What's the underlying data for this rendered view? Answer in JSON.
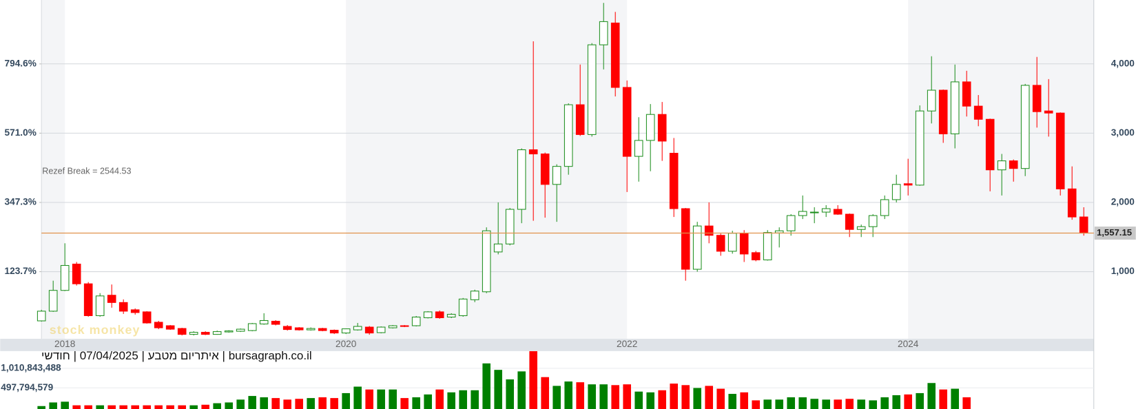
{
  "chart_data": {
    "type": "candlestick",
    "title": "bursagraph.co.il | איתריום מטבע | 07/04/2025 | חודשי",
    "annotation": "Rezef Break = 2544.53",
    "logo": "stock monkey",
    "categories": [
      null,
      null,
      "2018",
      null,
      null,
      null,
      null,
      null,
      null,
      null,
      null,
      null,
      null,
      null,
      null,
      null,
      null,
      null,
      null,
      null,
      null,
      null,
      null,
      null,
      null,
      null,
      "2020",
      null,
      null,
      null,
      null,
      null,
      null,
      null,
      null,
      null,
      null,
      null,
      null,
      null,
      null,
      null,
      null,
      null,
      null,
      null,
      null,
      null,
      null,
      null,
      "2022",
      null,
      null,
      null,
      null,
      null,
      null,
      null,
      null,
      null,
      null,
      null,
      null,
      null,
      null,
      null,
      null,
      null,
      null,
      null,
      null,
      null,
      null,
      null,
      "2024",
      null,
      null,
      null,
      null,
      null,
      null,
      null,
      null,
      null,
      null,
      null,
      null,
      null,
      null,
      null
    ],
    "open": [
      290,
      430,
      730,
      1110,
      825,
      365,
      660,
      555,
      450,
      420,
      270,
      220,
      180,
      95,
      125,
      95,
      130,
      140,
      150,
      245,
      285,
      210,
      190,
      160,
      180,
      155,
      115,
      160,
      200,
      120,
      190,
      220,
      220,
      335,
      420,
      345,
      365,
      595,
      710,
      1285,
      1400,
      1900,
      2760,
      2700,
      2260,
      2520,
      3410,
      2980,
      4275,
      4590,
      3660,
      2665,
      2895,
      3270,
      2710,
      1910,
      1035,
      1660,
      1525,
      1295,
      1555,
      1275,
      1170,
      1560,
      1590,
      1810,
      1850,
      1860,
      1900,
      1830,
      1610,
      1650,
      1810,
      2040,
      2270,
      2250,
      3320,
      3620,
      2990,
      3740,
      3390,
      3200,
      2470,
      2600,
      2490,
      3690,
      3320,
      3290,
      2195,
      1790
    ],
    "high": [
      450,
      870,
      1410,
      1140,
      850,
      690,
      815,
      600,
      470,
      430,
      290,
      230,
      190,
      140,
      140,
      150,
      155,
      180,
      260,
      400,
      300,
      230,
      200,
      195,
      190,
      165,
      180,
      260,
      215,
      210,
      230,
      230,
      360,
      430,
      440,
      400,
      620,
      740,
      1640,
      2000,
      1920,
      2780,
      4326,
      2720,
      2550,
      3430,
      3990,
      4300,
      4880,
      4750,
      3760,
      3230,
      3420,
      3450,
      2930,
      1920,
      1720,
      2000,
      1550,
      1590,
      1600,
      1300,
      1600,
      1640,
      1830,
      2100,
      1930,
      1960,
      1960,
      1840,
      1680,
      1830,
      2100,
      2400,
      2630,
      3400,
      4110,
      3630,
      3990,
      3900,
      3550,
      3210,
      2700,
      2620,
      3710,
      4100,
      3780,
      3300,
      2520,
      1930
    ],
    "low": [
      280,
      420,
      720,
      800,
      350,
      350,
      480,
      390,
      380,
      250,
      170,
      160,
      80,
      80,
      85,
      90,
      120,
      130,
      140,
      235,
      225,
      150,
      150,
      150,
      140,
      100,
      100,
      150,
      90,
      110,
      180,
      200,
      210,
      325,
      320,
      330,
      350,
      560,
      690,
      1250,
      1380,
      1700,
      1735,
      1780,
      1720,
      2400,
      2960,
      2950,
      3920,
      3530,
      2150,
      2300,
      2450,
      2600,
      1790,
      870,
      1000,
      1410,
      1230,
      1260,
      1140,
      1150,
      1160,
      1350,
      1520,
      1760,
      1700,
      1790,
      1820,
      1500,
      1500,
      1500,
      1760,
      2000,
      2100,
      2240,
      3140,
      2860,
      2780,
      3240,
      3100,
      2160,
      2100,
      2300,
      2380,
      3080,
      2950,
      2100,
      1750,
      1520
    ],
    "close": [
      430,
      730,
      1090,
      825,
      365,
      650,
      555,
      430,
      410,
      260,
      190,
      170,
      95,
      125,
      95,
      135,
      145,
      170,
      250,
      295,
      240,
      165,
      160,
      180,
      150,
      115,
      175,
      210,
      115,
      200,
      220,
      210,
      345,
      420,
      335,
      385,
      605,
      720,
      1590,
      1400,
      1900,
      2760,
      2700,
      2260,
      2520,
      3410,
      2980,
      4275,
      4610,
      3660,
      2665,
      2895,
      3270,
      2885,
      1910,
      1035,
      1660,
      1525,
      1295,
      1555,
      1255,
      1170,
      1565,
      1590,
      1810,
      1870,
      1860,
      1910,
      1830,
      1610,
      1650,
      1810,
      2040,
      2260,
      2250,
      3320,
      3620,
      2990,
      3740,
      3390,
      3200,
      2470,
      2600,
      2490,
      3690,
      3310,
      3290,
      2195,
      1790,
      1557.15
    ],
    "volume": [
      20000000,
      115000000,
      135000000,
      40000000,
      40000000,
      40000000,
      40000000,
      40000000,
      40000000,
      40000000,
      40000000,
      40000000,
      40000000,
      40000000,
      55000000,
      95000000,
      115000000,
      190000000,
      285000000,
      250000000,
      230000000,
      190000000,
      210000000,
      230000000,
      250000000,
      230000000,
      360000000,
      530000000,
      455000000,
      455000000,
      455000000,
      230000000,
      250000000,
      325000000,
      455000000,
      380000000,
      435000000,
      435000000,
      1140000000,
      970000000,
      720000000,
      930000000,
      1460000000,
      780000000,
      550000000,
      665000000,
      645000000,
      590000000,
      590000000,
      570000000,
      590000000,
      400000000,
      380000000,
      435000000,
      610000000,
      570000000,
      495000000,
      550000000,
      475000000,
      340000000,
      380000000,
      170000000,
      190000000,
      190000000,
      250000000,
      250000000,
      210000000,
      190000000,
      190000000,
      210000000,
      190000000,
      170000000,
      250000000,
      305000000,
      325000000,
      360000000,
      625000000,
      455000000,
      475000000,
      250000000,
      null,
      null,
      null,
      null,
      null,
      null,
      null,
      null,
      null,
      null
    ],
    "up_color": "#1f8f1f",
    "down_color": "#ff0000",
    "volume_up_color": "#008000",
    "volume_down_color": "#ff0000",
    "last_price": {
      "value": 1557.15,
      "label": "1,557.15"
    },
    "last_price_color": "#e0914a",
    "ylim": [
      0,
      4922
    ],
    "yticks": [
      {
        "value": 1000,
        "label": "1,000"
      },
      {
        "value": 2000,
        "label": "2,000"
      },
      {
        "value": 3000,
        "label": "3,000"
      },
      {
        "value": 4000,
        "label": "4,000"
      }
    ],
    "y2lim": [
      -100,
      1001
    ],
    "y2ticks": [
      {
        "value": 123.7,
        "label": "123.7%"
      },
      {
        "value": 347.3,
        "label": "347.3%"
      },
      {
        "value": 571,
        "label": "571.0%"
      },
      {
        "value": 794.6,
        "label": "794.6%"
      }
    ],
    "volume_lim": [
      0,
      1463000000
    ],
    "volume_ticks": [
      {
        "value": 497794579,
        "label": "497,794,579"
      },
      {
        "value": 1010843488,
        "label": "1,010,843,488"
      }
    ],
    "grid": true
  }
}
